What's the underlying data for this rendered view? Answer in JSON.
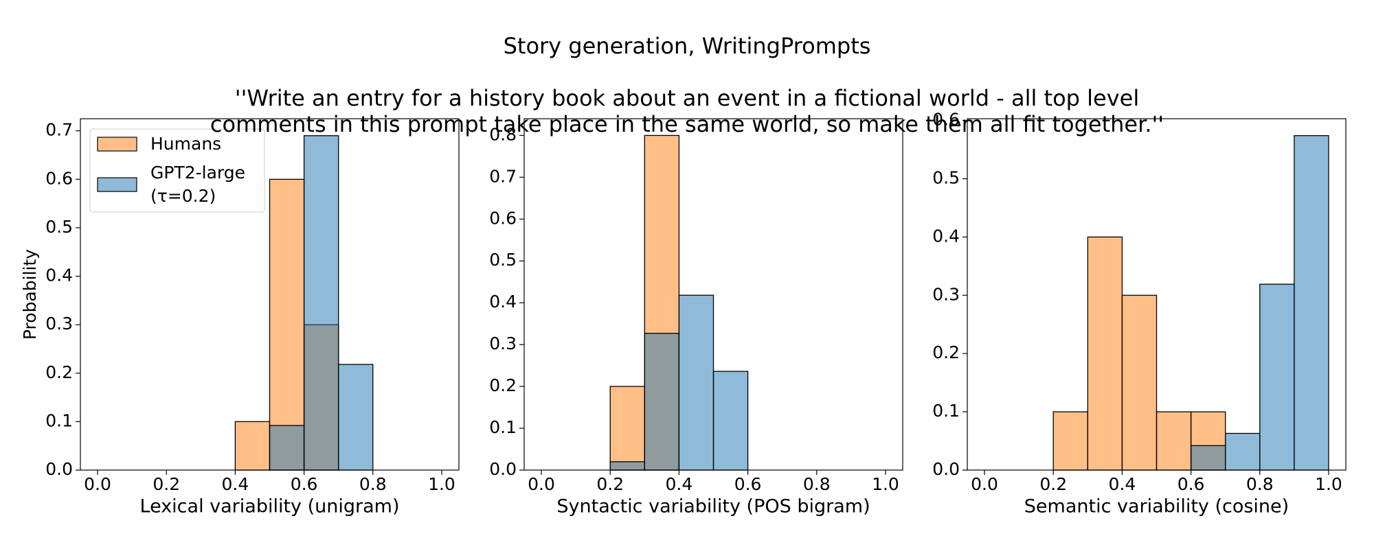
{
  "title": "Story generation, WritingPrompts",
  "subtitle": "''Write an entry for a history book about an event in a fictional world - all top level\ncomments in this prompt take place in the same world, so make them all fit together.''",
  "chart_data": [
    {
      "type": "histogram",
      "xlabel": "Lexical variability (unigram)",
      "ylabel": "Probability",
      "bins": [
        0.0,
        0.1,
        0.2,
        0.3,
        0.4,
        0.5,
        0.6,
        0.7,
        0.8,
        0.9,
        1.0
      ],
      "series": [
        {
          "name": "Humans",
          "color": "#ff7f0e",
          "values": [
            0,
            0,
            0,
            0,
            0.1,
            0.6,
            0.3,
            0,
            0,
            0
          ]
        },
        {
          "name": "GPT2-large\n(τ=0.2)",
          "color": "#1f77b4",
          "values": [
            0,
            0,
            0,
            0,
            0,
            0.092,
            0.69,
            0.218,
            0,
            0
          ]
        }
      ],
      "xlim": [
        -0.05,
        1.05
      ],
      "xticks": [
        {
          "value": 0,
          "label": "0.0"
        },
        0.2,
        0.4,
        0.6,
        0.8,
        {
          "value": 1,
          "label": "1.0"
        }
      ],
      "ylim": [
        0,
        0.725
      ],
      "yticks": [
        {
          "value": 0,
          "label": "0.0"
        },
        0.1,
        0.2,
        0.3,
        0.4,
        0.5,
        0.6,
        0.7
      ],
      "legend": "upper left"
    },
    {
      "type": "histogram",
      "xlabel": "Syntactic variability (POS bigram)",
      "bins": [
        0.0,
        0.1,
        0.2,
        0.3,
        0.4,
        0.5,
        0.6,
        0.7,
        0.8,
        0.9,
        1.0
      ],
      "series": [
        {
          "color": "#ff7f0e",
          "values": [
            0,
            0,
            0.2,
            0.8,
            0,
            0,
            0,
            0,
            0,
            0
          ]
        },
        {
          "color": "#1f77b4",
          "values": [
            0,
            0,
            0.02,
            0.327,
            0.418,
            0.236,
            0,
            0,
            0,
            0
          ]
        }
      ],
      "xlim": [
        -0.05,
        1.05
      ],
      "xticks": [
        {
          "value": 0,
          "label": "0.0"
        },
        0.2,
        0.4,
        0.6,
        0.8,
        {
          "value": 1,
          "label": "1.0"
        }
      ],
      "ylim": [
        0,
        0.84
      ],
      "yticks": [
        {
          "value": 0,
          "label": "0.0"
        },
        0.1,
        0.2,
        0.3,
        0.4,
        0.5,
        0.6,
        0.7,
        0.8
      ]
    },
    {
      "type": "histogram",
      "xlabel": "Semantic variability (cosine)",
      "bins": [
        0.0,
        0.1,
        0.2,
        0.3,
        0.4,
        0.5,
        0.6,
        0.7,
        0.8,
        0.9,
        1.0
      ],
      "series": [
        {
          "color": "#ff7f0e",
          "values": [
            0,
            0,
            0.1,
            0.4,
            0.3,
            0.1,
            0.1,
            0,
            0,
            0
          ]
        },
        {
          "color": "#1f77b4",
          "values": [
            0,
            0,
            0,
            0,
            0,
            0,
            0.042,
            0.063,
            0.319,
            0.574
          ]
        }
      ],
      "xlim": [
        -0.05,
        1.05
      ],
      "xticks": [
        {
          "value": 0,
          "label": "0.0"
        },
        0.2,
        0.4,
        0.6,
        0.8,
        {
          "value": 1,
          "label": "1.0"
        }
      ],
      "ylim": [
        0,
        0.603
      ],
      "yticks": [
        {
          "value": 0,
          "label": "0.0"
        },
        0.1,
        0.2,
        0.3,
        0.4,
        0.5,
        0.6
      ]
    }
  ]
}
